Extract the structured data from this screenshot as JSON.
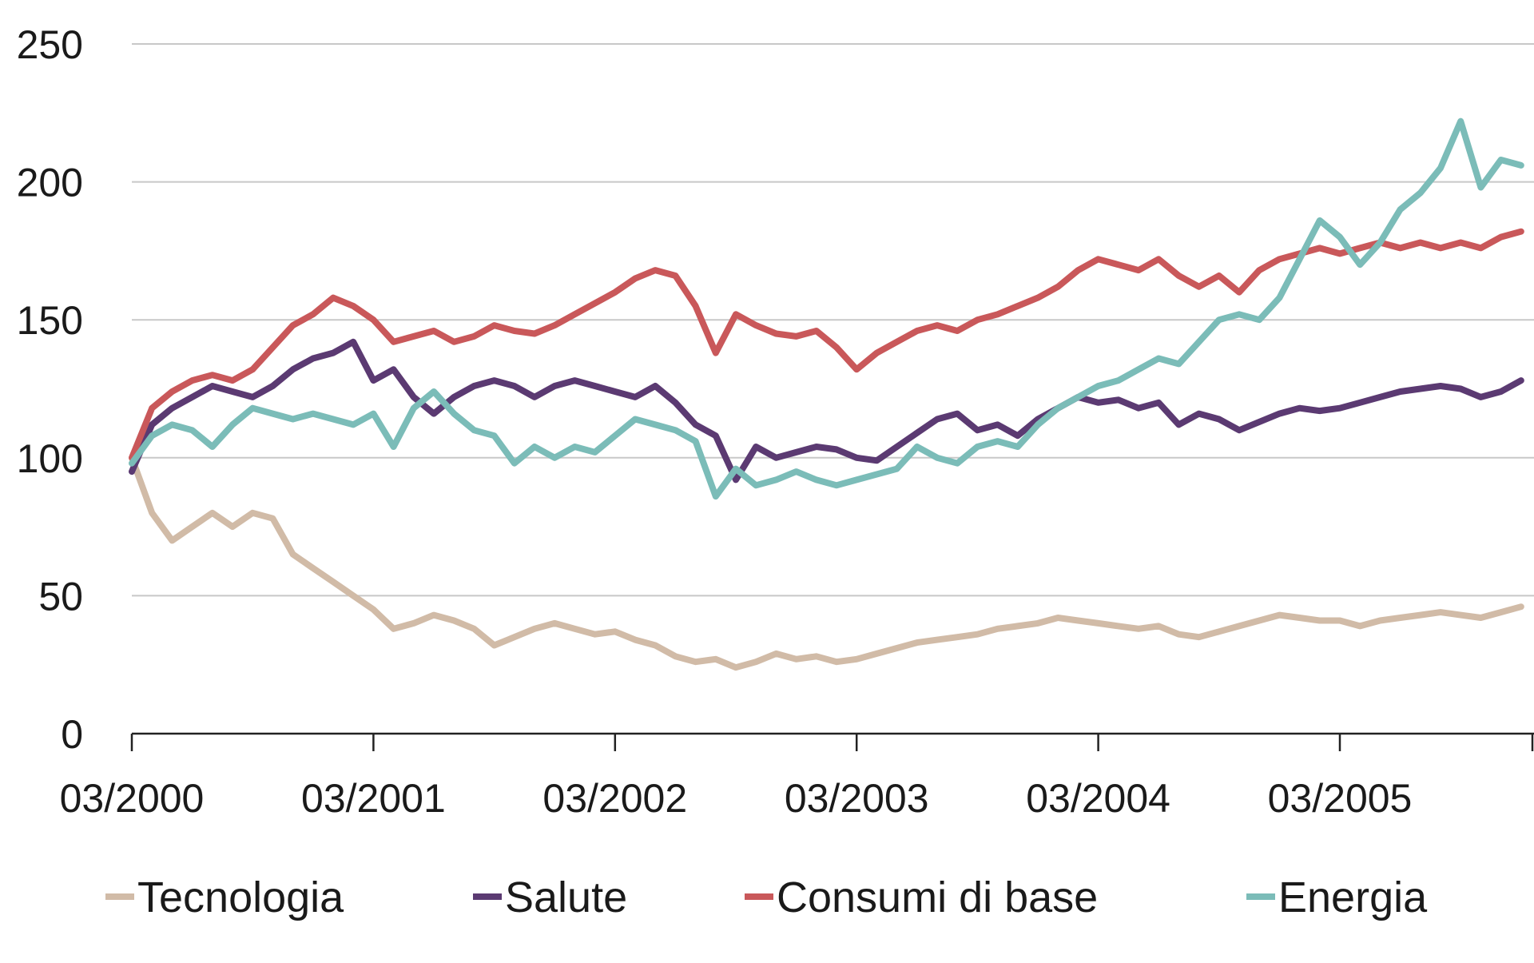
{
  "chart_data": {
    "type": "line",
    "title": "",
    "xlabel": "",
    "ylabel": "",
    "ylim": [
      0,
      250
    ],
    "yticks": [
      0,
      50,
      100,
      150,
      200,
      250
    ],
    "xlim": [
      "2000-03",
      "2005-12"
    ],
    "xticks": [
      "03/2000",
      "03/2001",
      "03/2002",
      "03/2003",
      "03/2004",
      "03/2005"
    ],
    "grid": "horizontal",
    "legend": "bottom",
    "series": [
      {
        "name": "Tecnologia",
        "color": "#d1bba7",
        "points": [
          [
            "2000-03",
            100
          ],
          [
            "2000-04",
            80
          ],
          [
            "2000-05",
            70
          ],
          [
            "2000-06",
            75
          ],
          [
            "2000-07",
            80
          ],
          [
            "2000-08",
            75
          ],
          [
            "2000-09",
            80
          ],
          [
            "2000-10",
            78
          ],
          [
            "2000-11",
            65
          ],
          [
            "2000-12",
            60
          ],
          [
            "2001-01",
            55
          ],
          [
            "2001-02",
            50
          ],
          [
            "2001-03",
            45
          ],
          [
            "2001-04",
            38
          ],
          [
            "2001-05",
            40
          ],
          [
            "2001-06",
            43
          ],
          [
            "2001-07",
            41
          ],
          [
            "2001-08",
            38
          ],
          [
            "2001-09",
            32
          ],
          [
            "2001-10",
            35
          ],
          [
            "2001-11",
            38
          ],
          [
            "2001-12",
            40
          ],
          [
            "2002-01",
            38
          ],
          [
            "2002-02",
            36
          ],
          [
            "2002-03",
            37
          ],
          [
            "2002-04",
            34
          ],
          [
            "2002-05",
            32
          ],
          [
            "2002-06",
            28
          ],
          [
            "2002-07",
            26
          ],
          [
            "2002-08",
            27
          ],
          [
            "2002-09",
            24
          ],
          [
            "2002-10",
            26
          ],
          [
            "2002-11",
            29
          ],
          [
            "2002-12",
            27
          ],
          [
            "2003-01",
            28
          ],
          [
            "2003-02",
            26
          ],
          [
            "2003-03",
            27
          ],
          [
            "2003-04",
            29
          ],
          [
            "2003-05",
            31
          ],
          [
            "2003-06",
            33
          ],
          [
            "2003-07",
            34
          ],
          [
            "2003-08",
            35
          ],
          [
            "2003-09",
            36
          ],
          [
            "2003-10",
            38
          ],
          [
            "2003-11",
            39
          ],
          [
            "2003-12",
            40
          ],
          [
            "2004-01",
            42
          ],
          [
            "2004-02",
            41
          ],
          [
            "2004-03",
            40
          ],
          [
            "2004-04",
            39
          ],
          [
            "2004-05",
            38
          ],
          [
            "2004-06",
            39
          ],
          [
            "2004-07",
            36
          ],
          [
            "2004-08",
            35
          ],
          [
            "2004-09",
            37
          ],
          [
            "2004-10",
            39
          ],
          [
            "2004-11",
            41
          ],
          [
            "2004-12",
            43
          ],
          [
            "2005-01",
            42
          ],
          [
            "2005-02",
            41
          ],
          [
            "2005-03",
            41
          ],
          [
            "2005-04",
            39
          ],
          [
            "2005-05",
            41
          ],
          [
            "2005-06",
            42
          ],
          [
            "2005-07",
            43
          ],
          [
            "2005-08",
            44
          ],
          [
            "2005-09",
            43
          ],
          [
            "2005-10",
            42
          ],
          [
            "2005-11",
            44
          ],
          [
            "2005-12",
            46
          ]
        ]
      },
      {
        "name": "Salute",
        "color": "#5b3a72",
        "points": [
          [
            "2000-03",
            95
          ],
          [
            "2000-04",
            112
          ],
          [
            "2000-05",
            118
          ],
          [
            "2000-06",
            122
          ],
          [
            "2000-07",
            126
          ],
          [
            "2000-08",
            124
          ],
          [
            "2000-09",
            122
          ],
          [
            "2000-10",
            126
          ],
          [
            "2000-11",
            132
          ],
          [
            "2000-12",
            136
          ],
          [
            "2001-01",
            138
          ],
          [
            "2001-02",
            142
          ],
          [
            "2001-03",
            128
          ],
          [
            "2001-04",
            132
          ],
          [
            "2001-05",
            122
          ],
          [
            "2001-06",
            116
          ],
          [
            "2001-07",
            122
          ],
          [
            "2001-08",
            126
          ],
          [
            "2001-09",
            128
          ],
          [
            "2001-10",
            126
          ],
          [
            "2001-11",
            122
          ],
          [
            "2001-12",
            126
          ],
          [
            "2002-01",
            128
          ],
          [
            "2002-02",
            126
          ],
          [
            "2002-03",
            124
          ],
          [
            "2002-04",
            122
          ],
          [
            "2002-05",
            126
          ],
          [
            "2002-06",
            120
          ],
          [
            "2002-07",
            112
          ],
          [
            "2002-08",
            108
          ],
          [
            "2002-09",
            92
          ],
          [
            "2002-10",
            104
          ],
          [
            "2002-11",
            100
          ],
          [
            "2002-12",
            102
          ],
          [
            "2003-01",
            104
          ],
          [
            "2003-02",
            103
          ],
          [
            "2003-03",
            100
          ],
          [
            "2003-04",
            99
          ],
          [
            "2003-05",
            104
          ],
          [
            "2003-06",
            109
          ],
          [
            "2003-07",
            114
          ],
          [
            "2003-08",
            116
          ],
          [
            "2003-09",
            110
          ],
          [
            "2003-10",
            112
          ],
          [
            "2003-11",
            108
          ],
          [
            "2003-12",
            114
          ],
          [
            "2004-01",
            118
          ],
          [
            "2004-02",
            122
          ],
          [
            "2004-03",
            120
          ],
          [
            "2004-04",
            121
          ],
          [
            "2004-05",
            118
          ],
          [
            "2004-06",
            120
          ],
          [
            "2004-07",
            112
          ],
          [
            "2004-08",
            116
          ],
          [
            "2004-09",
            114
          ],
          [
            "2004-10",
            110
          ],
          [
            "2004-11",
            113
          ],
          [
            "2004-12",
            116
          ],
          [
            "2005-01",
            118
          ],
          [
            "2005-02",
            117
          ],
          [
            "2005-03",
            118
          ],
          [
            "2005-04",
            120
          ],
          [
            "2005-05",
            122
          ],
          [
            "2005-06",
            124
          ],
          [
            "2005-07",
            125
          ],
          [
            "2005-08",
            126
          ],
          [
            "2005-09",
            125
          ],
          [
            "2005-10",
            122
          ],
          [
            "2005-11",
            124
          ],
          [
            "2005-12",
            128
          ]
        ]
      },
      {
        "name": "Consumi di base",
        "color": "#c9585a",
        "points": [
          [
            "2000-03",
            100
          ],
          [
            "2000-04",
            118
          ],
          [
            "2000-05",
            124
          ],
          [
            "2000-06",
            128
          ],
          [
            "2000-07",
            130
          ],
          [
            "2000-08",
            128
          ],
          [
            "2000-09",
            132
          ],
          [
            "2000-10",
            140
          ],
          [
            "2000-11",
            148
          ],
          [
            "2000-12",
            152
          ],
          [
            "2001-01",
            158
          ],
          [
            "2001-02",
            155
          ],
          [
            "2001-03",
            150
          ],
          [
            "2001-04",
            142
          ],
          [
            "2001-05",
            144
          ],
          [
            "2001-06",
            146
          ],
          [
            "2001-07",
            142
          ],
          [
            "2001-08",
            144
          ],
          [
            "2001-09",
            148
          ],
          [
            "2001-10",
            146
          ],
          [
            "2001-11",
            145
          ],
          [
            "2001-12",
            148
          ],
          [
            "2002-01",
            152
          ],
          [
            "2002-02",
            156
          ],
          [
            "2002-03",
            160
          ],
          [
            "2002-04",
            165
          ],
          [
            "2002-05",
            168
          ],
          [
            "2002-06",
            166
          ],
          [
            "2002-07",
            155
          ],
          [
            "2002-08",
            138
          ],
          [
            "2002-09",
            152
          ],
          [
            "2002-10",
            148
          ],
          [
            "2002-11",
            145
          ],
          [
            "2002-12",
            144
          ],
          [
            "2003-01",
            146
          ],
          [
            "2003-02",
            140
          ],
          [
            "2003-03",
            132
          ],
          [
            "2003-04",
            138
          ],
          [
            "2003-05",
            142
          ],
          [
            "2003-06",
            146
          ],
          [
            "2003-07",
            148
          ],
          [
            "2003-08",
            146
          ],
          [
            "2003-09",
            150
          ],
          [
            "2003-10",
            152
          ],
          [
            "2003-11",
            155
          ],
          [
            "2003-12",
            158
          ],
          [
            "2004-01",
            162
          ],
          [
            "2004-02",
            168
          ],
          [
            "2004-03",
            172
          ],
          [
            "2004-04",
            170
          ],
          [
            "2004-05",
            168
          ],
          [
            "2004-06",
            172
          ],
          [
            "2004-07",
            166
          ],
          [
            "2004-08",
            162
          ],
          [
            "2004-09",
            166
          ],
          [
            "2004-10",
            160
          ],
          [
            "2004-11",
            168
          ],
          [
            "2004-12",
            172
          ],
          [
            "2005-01",
            174
          ],
          [
            "2005-02",
            176
          ],
          [
            "2005-03",
            174
          ],
          [
            "2005-04",
            176
          ],
          [
            "2005-05",
            178
          ],
          [
            "2005-06",
            176
          ],
          [
            "2005-07",
            178
          ],
          [
            "2005-08",
            176
          ],
          [
            "2005-09",
            178
          ],
          [
            "2005-10",
            176
          ],
          [
            "2005-11",
            180
          ],
          [
            "2005-12",
            182
          ]
        ]
      },
      {
        "name": "Energia",
        "color": "#7bbcb8",
        "points": [
          [
            "2000-03",
            98
          ],
          [
            "2000-04",
            108
          ],
          [
            "2000-05",
            112
          ],
          [
            "2000-06",
            110
          ],
          [
            "2000-07",
            104
          ],
          [
            "2000-08",
            112
          ],
          [
            "2000-09",
            118
          ],
          [
            "2000-10",
            116
          ],
          [
            "2000-11",
            114
          ],
          [
            "2000-12",
            116
          ],
          [
            "2001-01",
            114
          ],
          [
            "2001-02",
            112
          ],
          [
            "2001-03",
            116
          ],
          [
            "2001-04",
            104
          ],
          [
            "2001-05",
            118
          ],
          [
            "2001-06",
            124
          ],
          [
            "2001-07",
            116
          ],
          [
            "2001-08",
            110
          ],
          [
            "2001-09",
            108
          ],
          [
            "2001-10",
            98
          ],
          [
            "2001-11",
            104
          ],
          [
            "2001-12",
            100
          ],
          [
            "2002-01",
            104
          ],
          [
            "2002-02",
            102
          ],
          [
            "2002-03",
            108
          ],
          [
            "2002-04",
            114
          ],
          [
            "2002-05",
            112
          ],
          [
            "2002-06",
            110
          ],
          [
            "2002-07",
            106
          ],
          [
            "2002-08",
            86
          ],
          [
            "2002-09",
            96
          ],
          [
            "2002-10",
            90
          ],
          [
            "2002-11",
            92
          ],
          [
            "2002-12",
            95
          ],
          [
            "2003-01",
            92
          ],
          [
            "2003-02",
            90
          ],
          [
            "2003-03",
            92
          ],
          [
            "2003-04",
            94
          ],
          [
            "2003-05",
            96
          ],
          [
            "2003-06",
            104
          ],
          [
            "2003-07",
            100
          ],
          [
            "2003-08",
            98
          ],
          [
            "2003-09",
            104
          ],
          [
            "2003-10",
            106
          ],
          [
            "2003-11",
            104
          ],
          [
            "2003-12",
            112
          ],
          [
            "2004-01",
            118
          ],
          [
            "2004-02",
            122
          ],
          [
            "2004-03",
            126
          ],
          [
            "2004-04",
            128
          ],
          [
            "2004-05",
            132
          ],
          [
            "2004-06",
            136
          ],
          [
            "2004-07",
            134
          ],
          [
            "2004-08",
            142
          ],
          [
            "2004-09",
            150
          ],
          [
            "2004-10",
            152
          ],
          [
            "2004-11",
            150
          ],
          [
            "2004-12",
            158
          ],
          [
            "2005-01",
            172
          ],
          [
            "2005-02",
            186
          ],
          [
            "2005-03",
            180
          ],
          [
            "2005-04",
            170
          ],
          [
            "2005-05",
            178
          ],
          [
            "2005-06",
            190
          ],
          [
            "2005-07",
            196
          ],
          [
            "2005-08",
            205
          ],
          [
            "2005-09",
            222
          ],
          [
            "2005-10",
            198
          ],
          [
            "2005-11",
            208
          ],
          [
            "2005-12",
            206
          ]
        ]
      }
    ]
  }
}
